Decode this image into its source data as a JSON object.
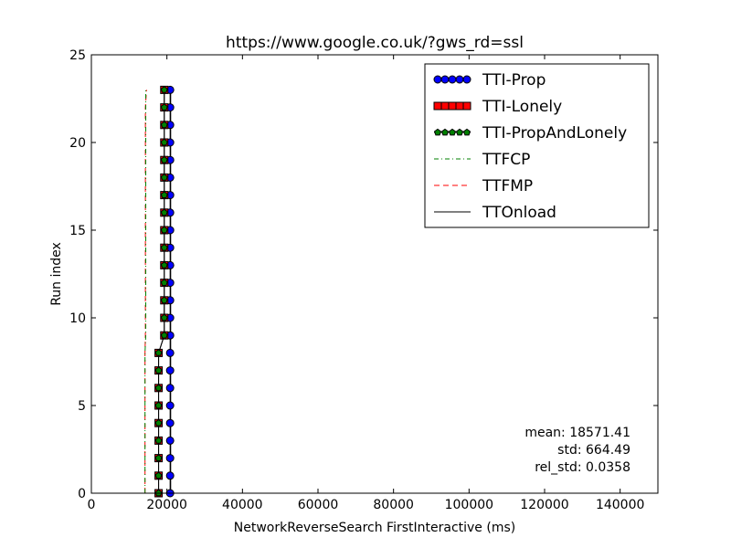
{
  "chart_data": {
    "type": "line",
    "title": "https://www.google.co.uk/?gws_rd=ssl",
    "xlabel": "NetworkReverseSearch FirstInteractive (ms)",
    "ylabel": "Run index",
    "xlim": [
      0,
      150000
    ],
    "ylim": [
      0,
      25
    ],
    "xticks": [
      0,
      20000,
      40000,
      60000,
      80000,
      100000,
      120000,
      140000
    ],
    "yticks": [
      0,
      5,
      10,
      15,
      20,
      25
    ],
    "grid": false,
    "legend_position": "top-right",
    "y": [
      0,
      1,
      2,
      3,
      4,
      5,
      6,
      7,
      8,
      9,
      10,
      11,
      12,
      13,
      14,
      15,
      16,
      17,
      18,
      19,
      20,
      21,
      22,
      23
    ],
    "series": [
      {
        "name": "TTI-Prop",
        "style": "line-circle-marker",
        "color": "#0000ff",
        "x": [
          20850,
          20850,
          20850,
          20850,
          20850,
          20850,
          20850,
          20850,
          20850,
          20850,
          20850,
          20850,
          20850,
          20850,
          20850,
          20850,
          20850,
          20850,
          20850,
          20850,
          20850,
          20850,
          20850,
          20850
        ]
      },
      {
        "name": "TTI-Lonely",
        "style": "line-square-marker",
        "color": "#ff0000",
        "x": [
          17800,
          17800,
          17800,
          17800,
          17800,
          17800,
          17800,
          17800,
          17800,
          19300,
          19300,
          19300,
          19300,
          19300,
          19300,
          19300,
          19300,
          19300,
          19300,
          19300,
          19300,
          19300,
          19300,
          19300
        ]
      },
      {
        "name": "TTI-PropAndLonely",
        "style": "line-pentagon-marker",
        "color": "#008000",
        "x": [
          17800,
          17800,
          17800,
          17800,
          17800,
          17800,
          17800,
          17800,
          17800,
          19300,
          19300,
          19300,
          19300,
          19300,
          19300,
          19300,
          19300,
          19300,
          19300,
          19300,
          19300,
          19300,
          19300,
          19300
        ]
      },
      {
        "name": "TTFCP",
        "style": "dash-dot",
        "color": "#008000",
        "x": [
          14200,
          14200,
          14200,
          14200,
          14200,
          14200,
          14200,
          14200,
          14200,
          14400,
          14400,
          14400,
          14400,
          14400,
          14400,
          14400,
          14400,
          14400,
          14400,
          14400,
          14400,
          14400,
          14400,
          14400
        ]
      },
      {
        "name": "TTFMP",
        "style": "dashed",
        "color": "#ff0000",
        "x": [
          14200,
          14200,
          14200,
          14200,
          14200,
          14200,
          14200,
          14200,
          14200,
          14300,
          14300,
          14300,
          14300,
          14300,
          14300,
          14300,
          14300,
          14300,
          14300,
          14300,
          14300,
          14300,
          14300,
          14600
        ]
      },
      {
        "name": "TTOnload",
        "style": "solid",
        "color": "#000000",
        "x": [
          21000,
          21000,
          21000,
          21000,
          21000,
          21000,
          21000,
          21000,
          21000,
          21000,
          21000,
          21000,
          21000,
          21000,
          21000,
          21000,
          21000,
          21000,
          21000,
          21000,
          21000,
          21000,
          21000,
          21000
        ]
      }
    ],
    "annotations": {
      "mean": "mean: 18571.41",
      "std": "std: 664.49",
      "rel_std": "rel_std: 0.0358"
    }
  }
}
